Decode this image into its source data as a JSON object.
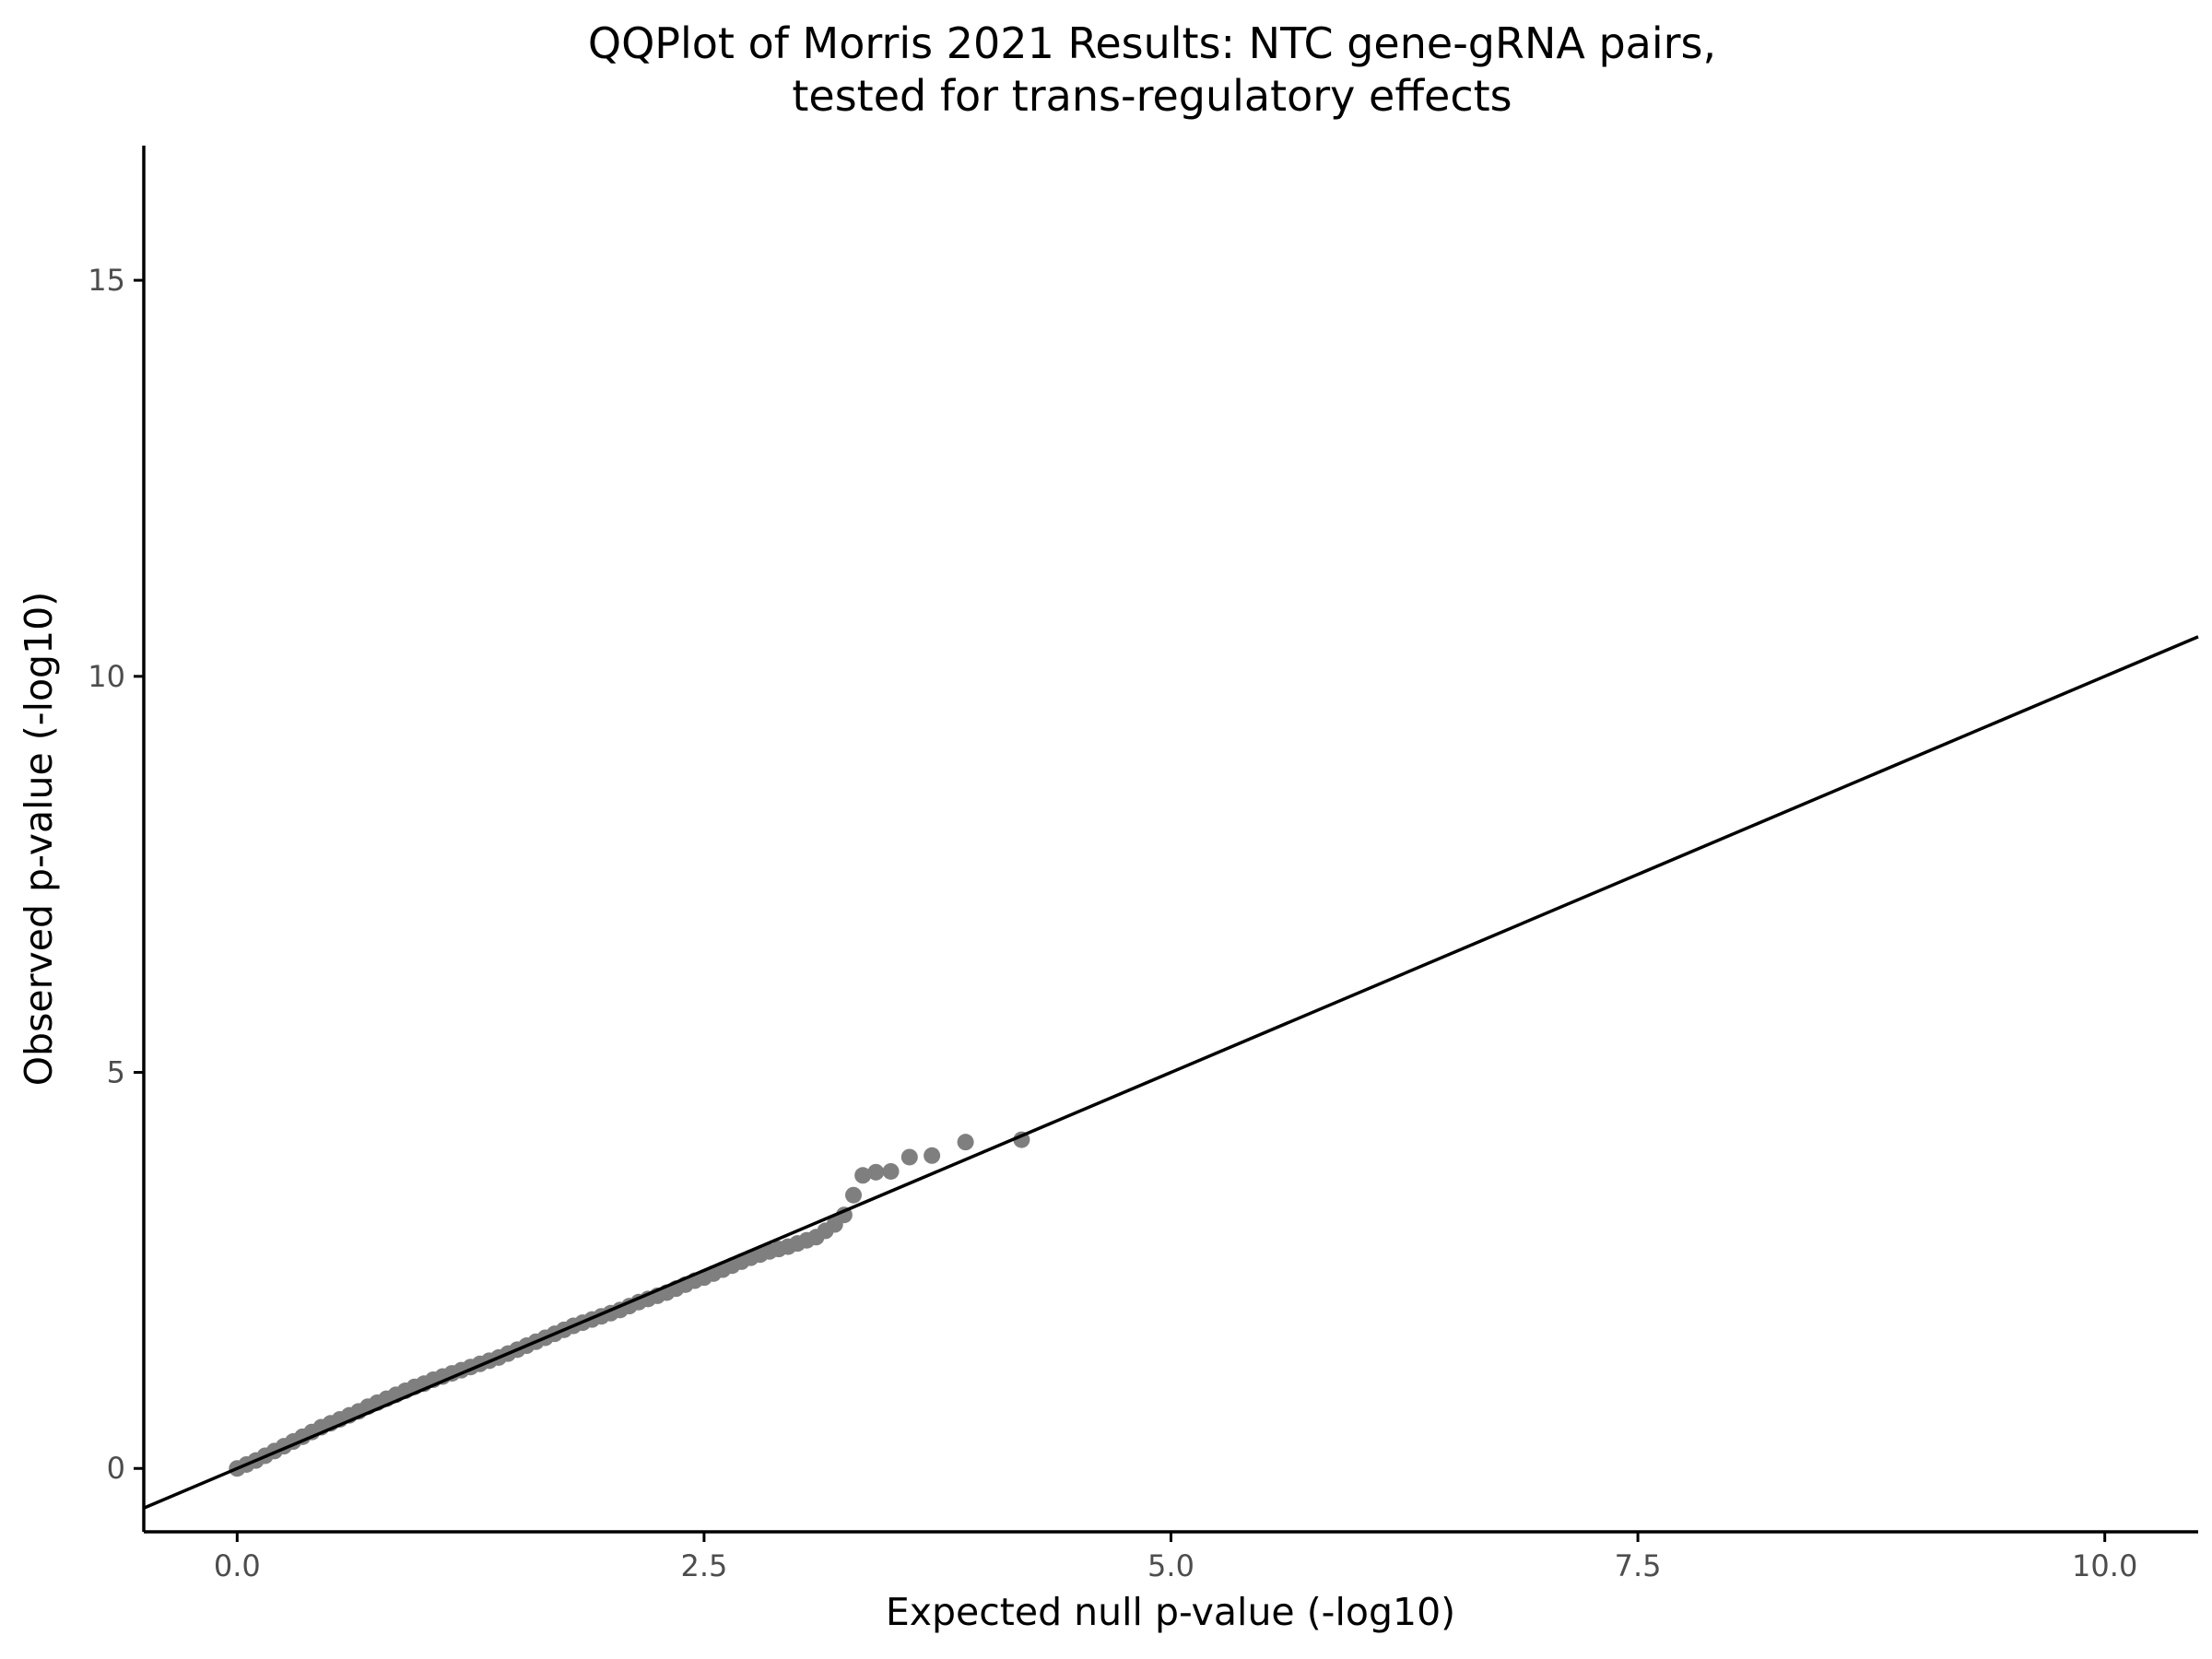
{
  "chart_data": {
    "type": "scatter",
    "title_line1": "QQPlot of Morris 2021 Results: NTC gene-gRNA pairs,",
    "title_line2": "tested for trans-regulatory effects",
    "xlabel": "Expected null p-value (-log10)",
    "ylabel": "Observed p-value (-log10)",
    "xlim": [
      -0.5,
      10.5
    ],
    "ylim": [
      -0.8,
      16.7
    ],
    "x_ticks": [
      0,
      2.5,
      5,
      7.5,
      10
    ],
    "x_tick_labels": [
      "0.0",
      "2.5",
      "5.0",
      "7.5",
      "10.0"
    ],
    "y_ticks": [
      0,
      5,
      10,
      15
    ],
    "y_tick_labels": [
      "0",
      "5",
      "10",
      "15"
    ],
    "grid": false,
    "legend": "none",
    "point_color": "#7f7f7f",
    "reference_line": {
      "slope": 1,
      "intercept": 0,
      "color": "#000000"
    },
    "points": {
      "x": [
        0.0,
        0.05,
        0.1,
        0.15,
        0.2,
        0.25,
        0.3,
        0.35,
        0.4,
        0.45,
        0.5,
        0.55,
        0.6,
        0.65,
        0.7,
        0.75,
        0.8,
        0.85,
        0.9,
        0.95,
        1.0,
        1.05,
        1.1,
        1.15,
        1.2,
        1.25,
        1.3,
        1.35,
        1.4,
        1.45,
        1.5,
        1.55,
        1.6,
        1.65,
        1.7,
        1.75,
        1.8,
        1.85,
        1.9,
        1.95,
        2.0,
        2.05,
        2.1,
        2.15,
        2.2,
        2.25,
        2.3,
        2.35,
        2.4,
        2.45,
        2.5,
        2.55,
        2.6,
        2.65,
        2.7,
        2.75,
        2.8,
        2.85,
        2.9,
        2.95,
        3.0,
        3.05,
        3.1,
        3.15,
        3.2,
        3.25,
        3.3,
        3.35,
        3.42,
        3.5,
        3.6,
        3.72,
        3.9,
        4.2
      ],
      "y": [
        0.0,
        0.05,
        0.1,
        0.16,
        0.22,
        0.28,
        0.34,
        0.4,
        0.46,
        0.52,
        0.57,
        0.62,
        0.67,
        0.72,
        0.78,
        0.83,
        0.88,
        0.93,
        0.98,
        1.03,
        1.07,
        1.12,
        1.16,
        1.2,
        1.24,
        1.28,
        1.32,
        1.36,
        1.4,
        1.45,
        1.5,
        1.55,
        1.6,
        1.65,
        1.7,
        1.75,
        1.8,
        1.84,
        1.88,
        1.92,
        1.96,
        2.0,
        2.05,
        2.1,
        2.14,
        2.18,
        2.22,
        2.27,
        2.32,
        2.37,
        2.41,
        2.46,
        2.51,
        2.56,
        2.61,
        2.66,
        2.7,
        2.74,
        2.77,
        2.8,
        2.84,
        2.88,
        2.92,
        3.0,
        3.08,
        3.2,
        3.45,
        3.7,
        3.74,
        3.75,
        3.93,
        3.95,
        4.12,
        4.15
      ]
    }
  }
}
